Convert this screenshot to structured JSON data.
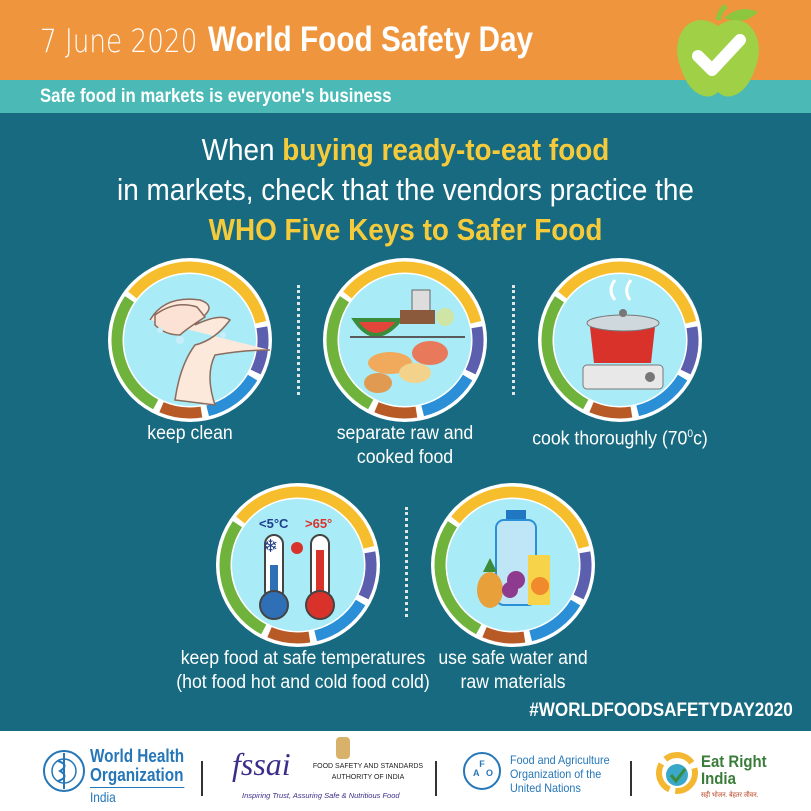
{
  "header": {
    "date": "7 June 2020",
    "title": "World Food Safety Day",
    "subtitle": "Safe food in markets is everyone's business",
    "logo_icon": "apple-checkmark-icon"
  },
  "headline": {
    "line1_plain": "When ",
    "line1_highlight": "buying ready-to-eat food",
    "line2": "in markets, check that the vendors practice the",
    "line3_highlight": "WHO Five Keys to Safer Food"
  },
  "keys": [
    {
      "label": "keep clean",
      "icon": "washing-hands-icon"
    },
    {
      "label_line1": "separate raw and",
      "label_line2": "cooked food",
      "icon": "separated-food-icon"
    },
    {
      "label": "cook thoroughly (70",
      "label_sup": "0",
      "label_end": "c)",
      "icon": "cooking-pot-icon"
    },
    {
      "label_line1": "keep food at safe temperatures",
      "label_line2": "(hot food hot and cold food cold)",
      "icon": "thermometers-icon",
      "cold": "<5°C",
      "hot": ">65°"
    },
    {
      "label_line1": "use safe water and",
      "label_line2": "raw materials",
      "icon": "water-and-fruit-icon"
    }
  ],
  "hashtag": "#WORLDFOODSAFETYDAY2020",
  "footer": {
    "who": {
      "line1": "World Health",
      "line2": "Organization",
      "line3": "India"
    },
    "fssai": {
      "name": "fssai",
      "line1": "FOOD SAFETY AND STANDARDS",
      "line2": "AUTHORITY OF INDIA",
      "tagline": "Inspiring Trust, Assuring Safe & Nutritious Food"
    },
    "fao": {
      "line1": "Food and Agriculture",
      "line2": "Organization of the",
      "line3": "United Nations"
    },
    "eri": {
      "line1": "Eat Right",
      "line2": "India",
      "tagline": "सही भोजन. बेहतर जीवन."
    }
  },
  "colors": {
    "orange": "#ef953d",
    "teal": "#4bbab7",
    "dark_teal": "#176a7f",
    "yellow": "#f5cb3b",
    "ring_yellow": "#f6be2c",
    "ring_purple": "#5b5fae",
    "ring_blue": "#2a8fd6",
    "ring_brown": "#b85a26",
    "ring_green": "#6fb23c"
  }
}
